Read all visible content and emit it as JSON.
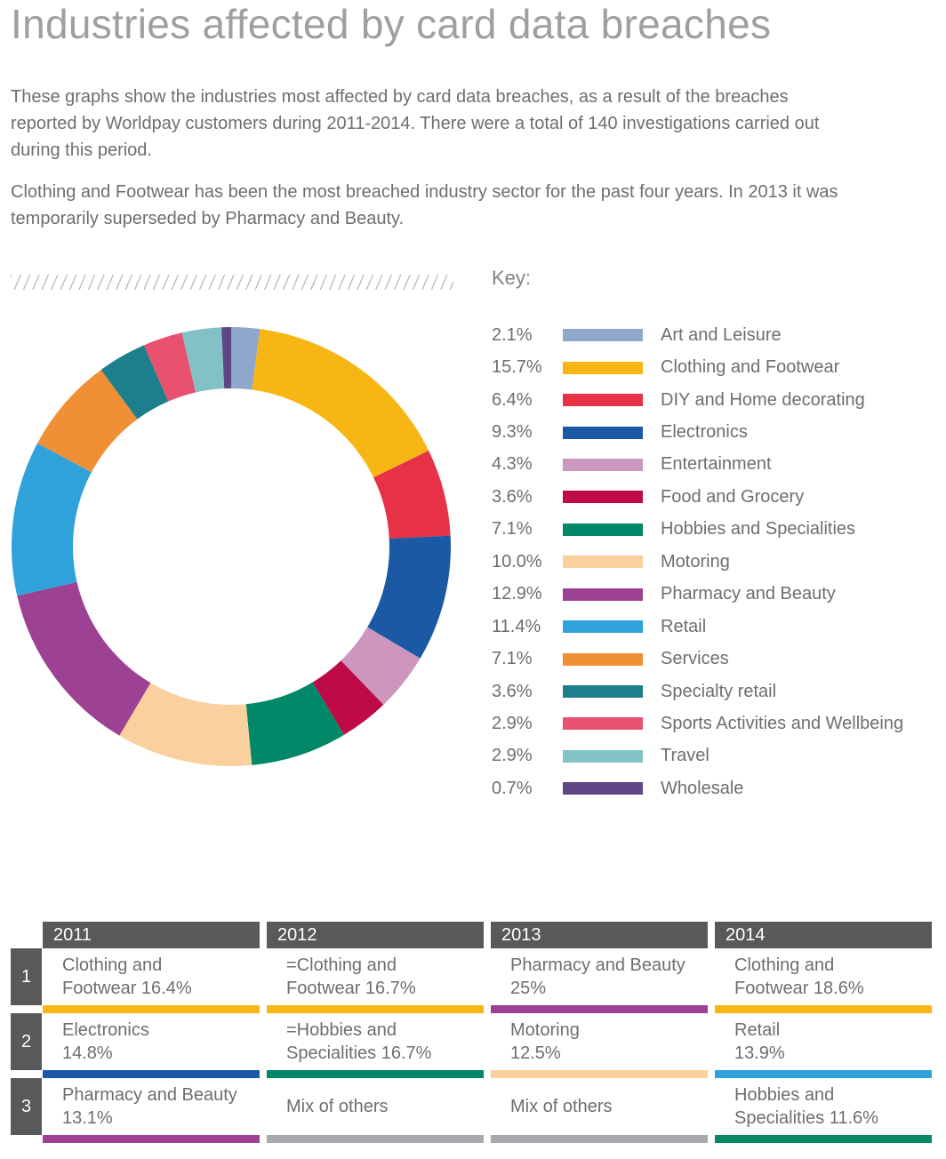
{
  "page": {
    "title": "Industries affected by card data breaches",
    "paragraph1": "These graphs show the industries most affected by card data breaches, as a result of the breaches\nreported by Worldpay customers during 2011-2014. There were a total of 140 investigations carried out\nduring this period.",
    "paragraph2": "Clothing and Footwear has been the most breached industry sector for the past four years. In 2013 it was\ntemporarily superseded by Pharmacy and Beauty."
  },
  "key": {
    "label": "Key:"
  },
  "legend": {
    "items": [
      {
        "percent": "2.1%",
        "label": "Art and Leisure",
        "color": "#8fa7cb"
      },
      {
        "percent": "15.7%",
        "label": "Clothing and Footwear",
        "color": "#f7b614"
      },
      {
        "percent": "6.4%",
        "label": "DIY and Home decorating",
        "color": "#e63146"
      },
      {
        "percent": "9.3%",
        "label": "Electronics",
        "color": "#1c59a4"
      },
      {
        "percent": "4.3%",
        "label": "Entertainment",
        "color": "#cc96be"
      },
      {
        "percent": "3.6%",
        "label": "Food and Grocery",
        "color": "#be0a46"
      },
      {
        "percent": "7.1%",
        "label": "Hobbies and Specialities",
        "color": "#008868"
      },
      {
        "percent": "10.0%",
        "label": "Motoring",
        "color": "#f9d09e"
      },
      {
        "percent": "12.9%",
        "label": "Pharmacy and Beauty",
        "color": "#9d4194"
      },
      {
        "percent": "11.4%",
        "label": "Retail",
        "color": "#2fa3d9"
      },
      {
        "percent": "7.1%",
        "label": "Services",
        "color": "#f08f33"
      },
      {
        "percent": "3.6%",
        "label": "Specialty retail",
        "color": "#1e7f8c"
      },
      {
        "percent": "2.9%",
        "label": "Sports Activities and Wellbeing",
        "color": "#e85170"
      },
      {
        "percent": "2.9%",
        "label": "Travel",
        "color": "#82c1c5"
      },
      {
        "percent": "0.7%",
        "label": "Wholesale",
        "color": "#5f4786"
      }
    ]
  },
  "chart_data": [
    {
      "type": "pie",
      "subtype": "donut",
      "title": "Industries affected by card data breaches",
      "categories": [
        "Art and Leisure",
        "Clothing and Footwear",
        "DIY and Home decorating",
        "Electronics",
        "Entertainment",
        "Food and Grocery",
        "Hobbies and Specialities",
        "Motoring",
        "Pharmacy and Beauty",
        "Retail",
        "Services",
        "Specialty retail",
        "Sports Activities and Wellbeing",
        "Travel",
        "Wholesale"
      ],
      "values": [
        2.1,
        15.7,
        6.4,
        9.3,
        4.3,
        3.6,
        7.1,
        10.0,
        12.9,
        11.4,
        7.1,
        3.6,
        2.9,
        2.9,
        0.7
      ],
      "colors": [
        "#8fa7cb",
        "#f7b614",
        "#e63146",
        "#1c59a4",
        "#cc96be",
        "#be0a46",
        "#008868",
        "#f9d09e",
        "#9d4194",
        "#2fa3d9",
        "#f08f33",
        "#1e7f8c",
        "#e85170",
        "#82c1c5",
        "#5f4786"
      ],
      "start_angle_deg": -90,
      "direction": "clockwise",
      "inner_radius_ratio": 0.72,
      "legend_position": "right"
    },
    {
      "type": "table",
      "columns": [
        "2011",
        "2012",
        "2013",
        "2014"
      ],
      "rows": [
        [
          "Clothing and Footwear 16.4%",
          "=Clothing and Footwear 16.7%",
          "Pharmacy and Beauty 25%",
          "Clothing and Footwear 18.6%"
        ],
        [
          "Electronics 14.8%",
          "=Hobbies and Specialities 16.7%",
          "Motoring 12.5%",
          "Retail 13.9%"
        ],
        [
          "Pharmacy and Beauty 13.1%",
          "Mix of others",
          "Mix of others",
          "Hobbies and Specialities 11.6%"
        ]
      ]
    }
  ],
  "table": {
    "row_numbers": [
      "1",
      "2",
      "3"
    ],
    "columns": [
      {
        "year": "2011",
        "cells": [
          {
            "lines": [
              "Clothing and",
              "Footwear 16.4%"
            ],
            "bar": "#f7b614"
          },
          {
            "lines": [
              "Electronics",
              "14.8%"
            ],
            "bar": "#1c59a4"
          },
          {
            "lines": [
              "Pharmacy and Beauty",
              "13.1%"
            ],
            "bar": "#9d4194"
          }
        ]
      },
      {
        "year": "2012",
        "cells": [
          {
            "lines": [
              "=Clothing and",
              "Footwear 16.7%"
            ],
            "bar": "#f7b614"
          },
          {
            "lines": [
              "=Hobbies and",
              "Specialities 16.7%"
            ],
            "bar": "#008868"
          },
          {
            "lines": [
              "Mix of others"
            ],
            "bar": "#a7a9ac"
          }
        ]
      },
      {
        "year": "2013",
        "cells": [
          {
            "lines": [
              "Pharmacy and Beauty",
              "25%"
            ],
            "bar": "#9d4194"
          },
          {
            "lines": [
              "Motoring",
              "12.5%"
            ],
            "bar": "#f9d09e"
          },
          {
            "lines": [
              "Mix of others"
            ],
            "bar": "#a7a9ac"
          }
        ]
      },
      {
        "year": "2014",
        "cells": [
          {
            "lines": [
              "Clothing and",
              "Footwear 18.6%"
            ],
            "bar": "#f7b614"
          },
          {
            "lines": [
              "Retail",
              "13.9%"
            ],
            "bar": "#2fa3d9"
          },
          {
            "lines": [
              "Hobbies and",
              "Specialities 11.6%"
            ],
            "bar": "#008868"
          }
        ]
      }
    ]
  },
  "colors": {
    "header_gray": "#58595b",
    "text_gray": "#6d6e71",
    "title_gray": "#9d9fa2",
    "key_gray": "#808285",
    "hatch_gray": "#bcbec0",
    "mix_bar_gray": "#a7a9ac"
  }
}
